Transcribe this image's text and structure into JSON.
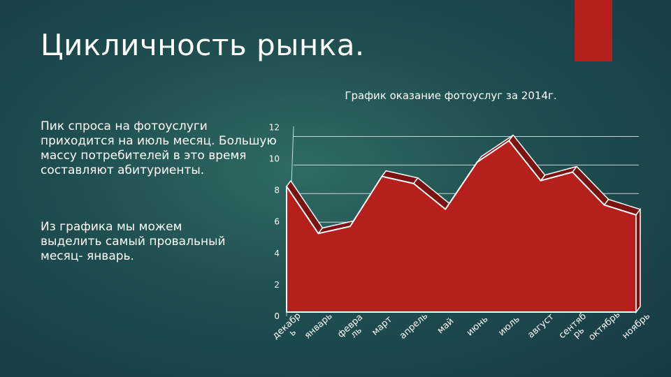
{
  "slide": {
    "title": "Цикличность рынка.",
    "paragraph1": "Пик спроса на фотоуслуги приходится на июль месяц. Большую массу потребителей в это время составляют абитуриенты.",
    "paragraph2": "Из графика мы можем выделить самый провальный месяц- январь."
  },
  "colors": {
    "accent": "#b51f1c",
    "area_fill": "#b51f1c",
    "area_side": "#7a1210",
    "background": "#1f4e4f"
  },
  "chart_data": {
    "type": "area",
    "title": "График оказание фотоуслуг за 2014г.",
    "categories": [
      "декабрь",
      "январь",
      "февраль",
      "март",
      "апрель",
      "май",
      "июнь",
      "июль",
      "август",
      "сентябрь",
      "октябрь",
      "ноябрь"
    ],
    "category_labels": [
      "декабр ь",
      "январь",
      "февра ль",
      "март",
      "апрель",
      "май",
      "июнь",
      "июль",
      "август",
      "сентяб рь",
      "октябрь",
      "ноябрь"
    ],
    "values": [
      8.8,
      5.5,
      6.0,
      9.5,
      9.0,
      7.2,
      10.5,
      12.0,
      9.2,
      9.8,
      7.5,
      6.8
    ],
    "yticks": [
      "0",
      "2",
      "4",
      "6",
      "8",
      "10",
      "12"
    ],
    "ylim": [
      0,
      13
    ],
    "grid": true,
    "legend": "none"
  }
}
